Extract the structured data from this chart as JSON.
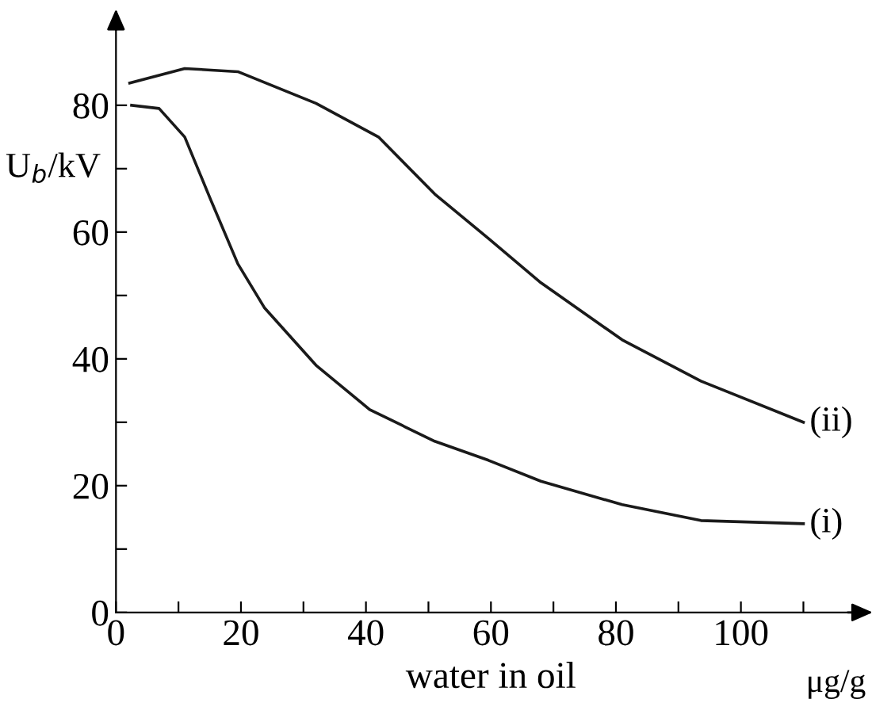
{
  "chart_data": {
    "type": "line",
    "xlabel": "water in oil",
    "ylabel": "U$_{b}$/kV",
    "annotations": [
      "μg/g"
    ],
    "xlim": [
      0,
      120
    ],
    "ylim": [
      0,
      94
    ],
    "xticks": [
      0,
      {
        "value": 10,
        "label": null
      },
      20,
      {
        "value": 30,
        "label": null
      },
      40,
      {
        "value": 50,
        "label": null
      },
      60,
      {
        "value": 70,
        "label": null
      },
      80,
      {
        "value": 90,
        "label": null
      },
      100,
      {
        "value": 110,
        "label": null
      }
    ],
    "yticks": [
      0,
      {
        "value": 10,
        "label": null
      },
      20,
      {
        "value": 30,
        "label": null
      },
      40,
      {
        "value": 50,
        "label": null
      },
      60,
      {
        "value": 70,
        "label": null
      },
      80
    ],
    "grid": false,
    "legend": false,
    "series": [
      {
        "name": "(i)",
        "color": "#1a1a1a",
        "x": [
          2.5,
          6.9,
          11,
          15.2,
          19.5,
          23.8,
          32,
          40.6,
          51,
          59.6,
          68,
          81,
          93.6,
          110
        ],
        "values": [
          80,
          79.5,
          75,
          65,
          55,
          48,
          39,
          32,
          27,
          24,
          20.7,
          17,
          14.5,
          14
        ]
      },
      {
        "name": "(ii)",
        "color": "#1a1a1a",
        "x": [
          2.2,
          11,
          19.5,
          32,
          42,
          51,
          59.6,
          68,
          81,
          93.6,
          110
        ],
        "values": [
          83.5,
          85.8,
          85.3,
          80.3,
          75,
          66,
          59,
          52,
          43,
          36.5,
          30
        ]
      }
    ]
  }
}
